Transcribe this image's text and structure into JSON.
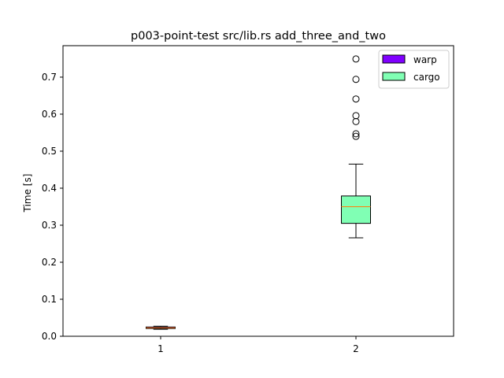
{
  "chart_data": {
    "type": "boxplot",
    "title": "p003-point-test src/lib.rs add_three_and_two",
    "xlabel": "",
    "ylabel": "Time [s]",
    "categories": [
      "1",
      "2"
    ],
    "xlim": [
      0.5,
      2.5
    ],
    "ylim": [
      0,
      0.785
    ],
    "yticks": [
      0.0,
      0.1,
      0.2,
      0.3,
      0.4,
      0.5,
      0.6,
      0.7
    ],
    "ytick_labels": [
      "0.0",
      "0.1",
      "0.2",
      "0.3",
      "0.4",
      "0.5",
      "0.6",
      "0.7"
    ],
    "grid": false,
    "legend_position": "top-right",
    "series": [
      {
        "name": "warp",
        "color": "#8000ff",
        "position": 1,
        "whisker_low": 0.019,
        "q1": 0.021,
        "median": 0.023,
        "q3": 0.025,
        "whisker_high": 0.027,
        "outliers": []
      },
      {
        "name": "cargo",
        "color": "#80ffb4",
        "position": 2,
        "whisker_low": 0.266,
        "q1": 0.305,
        "median": 0.35,
        "q3": 0.379,
        "whisker_high": 0.465,
        "outliers": [
          0.54,
          0.547,
          0.58,
          0.596,
          0.641,
          0.694,
          0.749
        ]
      }
    ],
    "median_color": "#ff7f0e"
  }
}
